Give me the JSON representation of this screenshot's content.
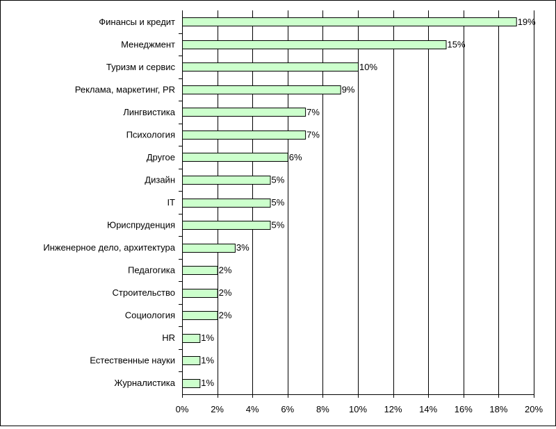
{
  "chart_data": {
    "type": "bar",
    "orientation": "horizontal",
    "title": "",
    "xlabel": "",
    "ylabel": "",
    "xlim": [
      0,
      20
    ],
    "tick_step": 2,
    "ticks": [
      "0%",
      "2%",
      "4%",
      "6%",
      "8%",
      "10%",
      "12%",
      "14%",
      "16%",
      "18%",
      "20%"
    ],
    "grid": true,
    "legend": "none",
    "bar_color": "#ccffcc",
    "categories": [
      "Финансы и кредит",
      "Менеджмент",
      "Туризм и сервис",
      "Реклама, маркетинг, PR",
      "Лингвистика",
      "Психология",
      "Другое",
      "Дизайн",
      "IT",
      "Юриспруденция",
      "Инженерное дело, архитектура",
      "Педагогика",
      "Строительство",
      "Социология",
      "HR",
      "Естественные науки",
      "Журналистика"
    ],
    "values": [
      19,
      15,
      10,
      9,
      7,
      7,
      6,
      5,
      5,
      5,
      3,
      2,
      2,
      2,
      1,
      1,
      1
    ],
    "data_labels": [
      "19%",
      "15%",
      "10%",
      "9%",
      "7%",
      "7%",
      "6%",
      "5%",
      "5%",
      "5%",
      "3%",
      "2%",
      "2%",
      "2%",
      "1%",
      "1%",
      "1%"
    ]
  }
}
